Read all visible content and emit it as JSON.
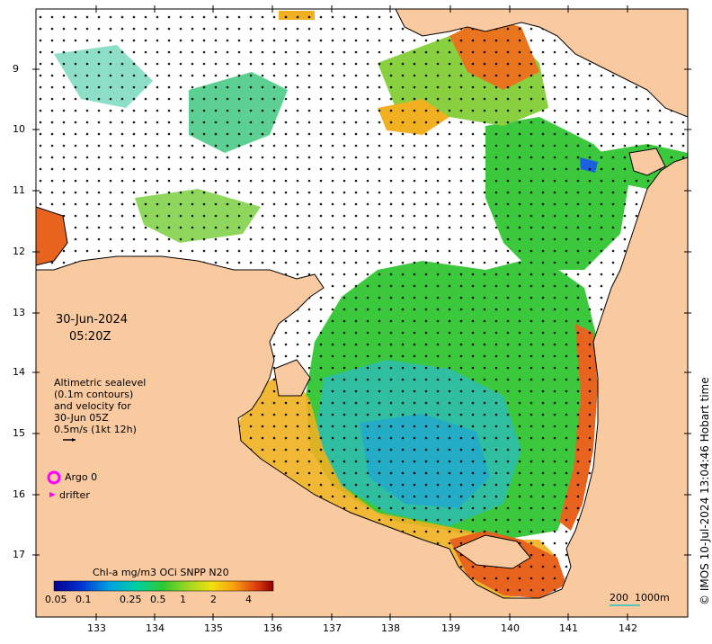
{
  "map": {
    "date": "30-Jun-2024",
    "time": "05:20Z",
    "credit": "© IMOS 10-Jul-2024 13:04:46 Hobart time",
    "x_ticks": [
      "133",
      "134",
      "135",
      "136",
      "137",
      "138",
      "139",
      "140",
      "141",
      "142"
    ],
    "y_ticks": [
      "9",
      "10",
      "11",
      "12",
      "13",
      "14",
      "15",
      "16",
      "17"
    ],
    "legend": {
      "line1": "Altimetric sealevel",
      "line2": "(0.1m contours)",
      "line3": "and velocity for",
      "line4": "30-Jun 05Z",
      "line5": "0.5m/s (1kt 12h)",
      "argo": "Argo 0",
      "drifter": "drifter"
    },
    "colorbar": {
      "title": "Chl-a mg/m3 OCi SNPP N20",
      "ticks": [
        "0.05",
        "0.1",
        "0.25",
        "0.5",
        "1",
        "2",
        "4"
      ]
    },
    "depth_legend": {
      "a": "200",
      "b": "1000m"
    },
    "colors": {
      "land": "#f9c9a0",
      "ocean_cloud": "#ffffff",
      "chl_low": "#1a9ad0",
      "chl_mid": "#3cc83c",
      "chl_high": "#e8641e",
      "argo": "#ff00ff",
      "drifter": "#ff00ff"
    }
  }
}
